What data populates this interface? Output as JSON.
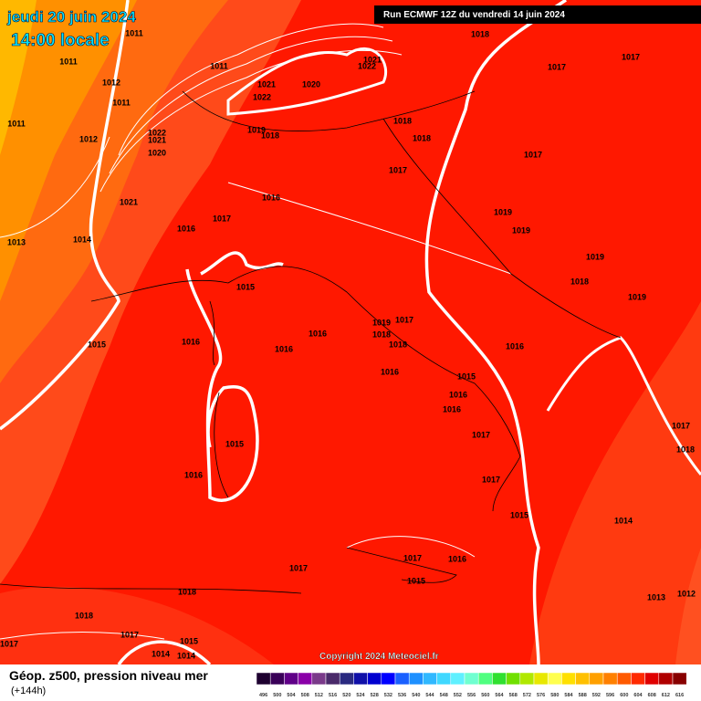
{
  "valid_date": "jeudi 20 juin 2024",
  "valid_time": "14:00 locale",
  "run_info": "Run ECMWF 12Z du vendredi 14 juin 2024",
  "copyright": "Copyright 2024 Meteociel.fr",
  "product_title": "Géop. z500, pression niveau mer",
  "forecast_step": "(+144h)",
  "isobar_labels": [
    "1011",
    "1011",
    "1012",
    "1011",
    "1011",
    "1012",
    "1011",
    "1021",
    "1022",
    "1021",
    "1020",
    "1022",
    "1018",
    "1017",
    "1017",
    "1022",
    "1021",
    "1020",
    "1019",
    "1018",
    "1018",
    "1018",
    "1017",
    "1017",
    "1021",
    "1016",
    "1017",
    "1016",
    "1013",
    "1014",
    "1019",
    "1019",
    "1019",
    "1015",
    "1018",
    "1019",
    "1016",
    "1019",
    "1017",
    "1018",
    "1018",
    "1015",
    "1016",
    "1016",
    "1016",
    "1016",
    "1015",
    "1016",
    "1016",
    "1017",
    "1015",
    "1016",
    "1017",
    "1015",
    "1014",
    "1017",
    "1018",
    "1017",
    "1016",
    "1015",
    "1017",
    "1018",
    "1018",
    "1017",
    "1015",
    "1014",
    "1014",
    "1017",
    "1013",
    "1012"
  ],
  "scale_labels": [
    "496",
    "500",
    "504",
    "508",
    "512",
    "516",
    "520",
    "524",
    "528",
    "532",
    "536",
    "540",
    "544",
    "548",
    "552",
    "556",
    "560",
    "564",
    "568",
    "572",
    "576",
    "580",
    "584",
    "588",
    "592",
    "596",
    "600",
    "604",
    "608",
    "612",
    "616"
  ]
}
